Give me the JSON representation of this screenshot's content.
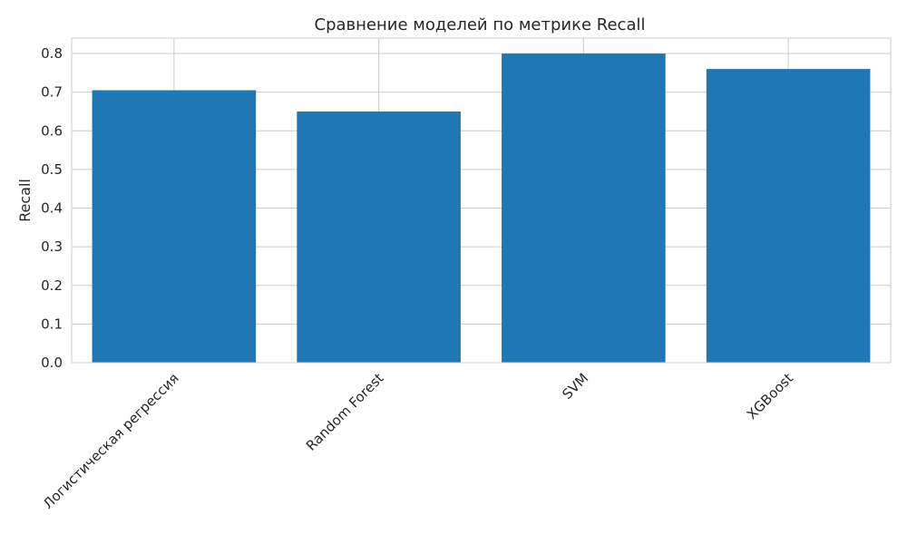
{
  "chart_data": {
    "type": "bar",
    "title": "Сравнение моделей по метрике Recall",
    "xlabel": "",
    "ylabel": "Recall",
    "categories": [
      "Логистическая регрессия",
      "Random Forest",
      "SVM",
      "XGBoost"
    ],
    "values": [
      0.705,
      0.65,
      0.8,
      0.76
    ],
    "ylim": [
      0,
      0.84
    ],
    "yticks": [
      "0.0",
      "0.1",
      "0.2",
      "0.3",
      "0.4",
      "0.5",
      "0.6",
      "0.7",
      "0.8"
    ],
    "grid": true,
    "bar_color": "#1f77b4",
    "grid_color": "#cccccc"
  }
}
